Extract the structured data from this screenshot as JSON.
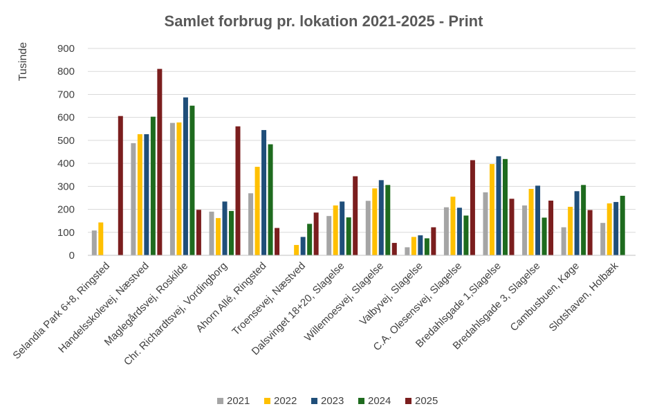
{
  "chart_data": {
    "type": "bar",
    "title": "Samlet forbrug pr. lokation 2021-2025 - Print",
    "ylabel": "Tusinde",
    "xlabel": "",
    "ylim": [
      0,
      900
    ],
    "yticks": [
      0,
      100,
      200,
      300,
      400,
      500,
      600,
      700,
      800,
      900
    ],
    "grid": true,
    "legend_position": "bottom",
    "categories": [
      "Selandia Park 6+8, Ringsted",
      "Handelsskolevej, Næstved",
      "Maglegårdsvej, Roskilde",
      "Chr. Richardtsvej, Vordingborg",
      "Ahorn Allé, Ringsted",
      "Troensevej, Næstved",
      "Dalsvinget 18+20, Slagelse",
      "Willemoesvej, Slagelse",
      "Valbyvej, Slagelse",
      "C.A. Olesensvej, Slagelse",
      "Bredahlsgade 1,Slagelse",
      "Bredahlsgade 3, Slagelse",
      "Cambusbuen, Køge",
      "Slotshaven, Holbæk"
    ],
    "series": [
      {
        "name": "2021",
        "color": "#a5a5a5",
        "values": [
          108,
          488,
          576,
          190,
          270,
          0,
          171,
          237,
          35,
          209,
          274,
          217,
          122,
          141
        ]
      },
      {
        "name": "2022",
        "color": "#ffc000",
        "values": [
          143,
          527,
          578,
          162,
          385,
          45,
          217,
          291,
          80,
          255,
          397,
          289,
          211,
          226
        ]
      },
      {
        "name": "2023",
        "color": "#1f4e79",
        "values": [
          0,
          527,
          687,
          234,
          545,
          80,
          234,
          327,
          87,
          207,
          431,
          303,
          279,
          232
        ]
      },
      {
        "name": "2024",
        "color": "#1e6b1e",
        "values": [
          0,
          603,
          651,
          193,
          483,
          137,
          165,
          306,
          74,
          173,
          419,
          164,
          306,
          259
        ]
      },
      {
        "name": "2025",
        "color": "#7b1e1e",
        "values": [
          606,
          811,
          198,
          561,
          119,
          186,
          344,
          54,
          122,
          414,
          246,
          238,
          197,
          0
        ]
      }
    ]
  }
}
